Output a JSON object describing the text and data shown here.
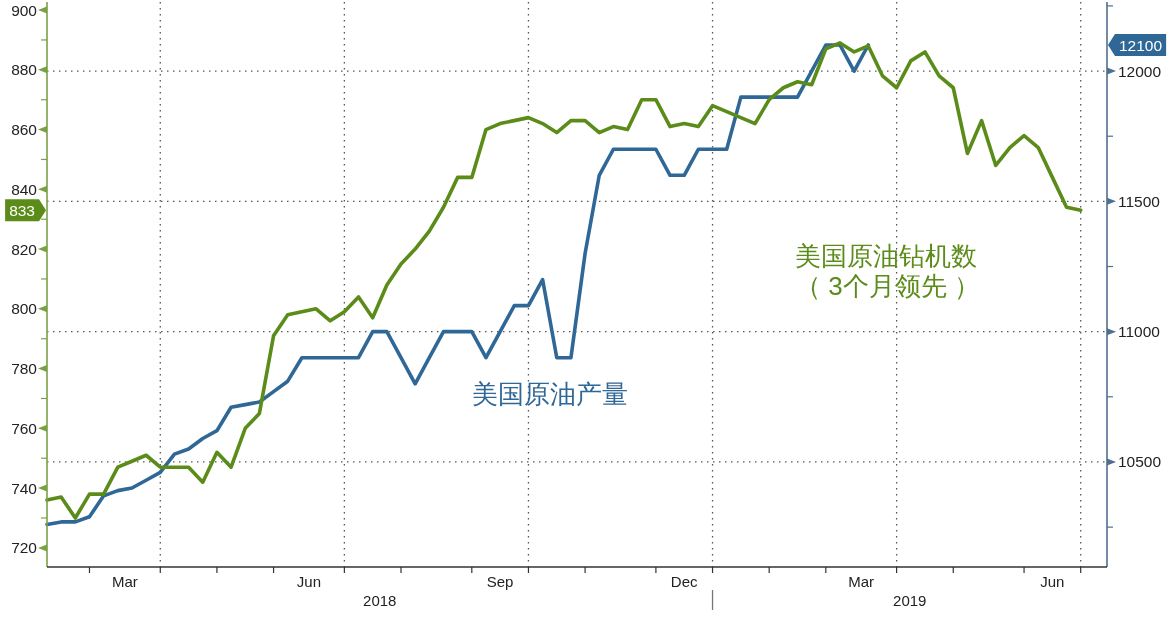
{
  "chart_data": {
    "type": "line",
    "xlim": [
      "2018-02-09",
      "2019-07-18"
    ],
    "xticks": [
      {
        "value": "2018-03-02",
        "label": null
      },
      {
        "value": "2018-03-19T12:00",
        "label": "Mar"
      },
      {
        "value": "2018-04-06",
        "label": null
      },
      {
        "value": "2018-05-04",
        "label": null
      },
      {
        "value": "2018-06-01",
        "label": null
      },
      {
        "value": "2018-06-18T12:00",
        "label": "Jun"
      },
      {
        "value": "2018-07-06",
        "label": null
      },
      {
        "value": "2018-08-03",
        "label": null
      },
      {
        "value": "2018-09-07",
        "label": null
      },
      {
        "value": "2018-09-21",
        "label": "Sep"
      },
      {
        "value": "2018-10-05",
        "label": null
      },
      {
        "value": "2018-11-02",
        "label": null
      },
      {
        "value": "2018-12-07",
        "label": null
      },
      {
        "value": "2018-12-21",
        "label": "Dec"
      },
      {
        "value": "2019-01-04",
        "label": null
      },
      {
        "value": "2019-02-01",
        "label": null
      },
      {
        "value": "2019-03-01",
        "label": null
      },
      {
        "value": "2019-03-18T12:00",
        "label": "Mar"
      },
      {
        "value": "2019-04-05",
        "label": null
      },
      {
        "value": "2019-05-03",
        "label": null
      },
      {
        "value": "2019-06-07",
        "label": null
      },
      {
        "value": "2019-06-21",
        "label": "Jun"
      },
      {
        "value": "2019-07-05",
        "label": null
      }
    ],
    "ylim": [
      713.6,
      902.7
    ],
    "yticks": [
      720,
      {
        "value": 730,
        "label": null
      },
      740,
      {
        "value": 750,
        "label": null
      },
      760,
      {
        "value": 770,
        "label": null
      },
      780,
      {
        "value": 790,
        "label": null
      },
      800,
      {
        "value": 810,
        "label": null
      },
      820,
      {
        "value": 830,
        "label": null
      },
      833,
      840,
      {
        "value": 850,
        "label": null
      },
      860,
      {
        "value": 870,
        "label": null
      },
      880,
      {
        "value": 890,
        "label": null
      },
      900
    ],
    "y2lim": [
      10097,
      12265
    ],
    "y2ticks": [
      {
        "value": 10250,
        "label": null
      },
      10500,
      {
        "value": 10750,
        "label": null
      },
      11000,
      {
        "value": 11250,
        "label": null
      },
      11500,
      {
        "value": 11750,
        "label": null
      },
      12000,
      12100,
      {
        "value": 12250,
        "label": null
      }
    ],
    "grid": true,
    "annotations": [
      "2018",
      "2019"
    ],
    "series": [
      {
        "name": "美国原油产量",
        "color": "#2f6796",
        "axis": "y2",
        "x": [
          "2018-02-09",
          "2018-02-16",
          "2018-02-23",
          "2018-03-02",
          "2018-03-09",
          "2018-03-16",
          "2018-03-23",
          "2018-03-30",
          "2018-04-06",
          "2018-04-13",
          "2018-04-20",
          "2018-04-27",
          "2018-05-04",
          "2018-05-11",
          "2018-05-18",
          "2018-05-25",
          "2018-06-01",
          "2018-06-08",
          "2018-06-15",
          "2018-06-22",
          "2018-06-29",
          "2018-07-06",
          "2018-07-13",
          "2018-07-20",
          "2018-07-27",
          "2018-08-03",
          "2018-08-10",
          "2018-08-17",
          "2018-08-24",
          "2018-08-31",
          "2018-09-07",
          "2018-09-14",
          "2018-09-21",
          "2018-09-28",
          "2018-10-05",
          "2018-10-12",
          "2018-10-19",
          "2018-10-26",
          "2018-11-02",
          "2018-11-09",
          "2018-11-16",
          "2018-11-23",
          "2018-11-30",
          "2018-12-07",
          "2018-12-14",
          "2018-12-21",
          "2018-12-28",
          "2019-01-04",
          "2019-01-11",
          "2019-01-18",
          "2019-01-25",
          "2019-02-01",
          "2019-02-08",
          "2019-02-15",
          "2019-02-22",
          "2019-03-01",
          "2019-03-08",
          "2019-03-15",
          "2019-03-22"
        ],
        "values": [
          10260,
          10270,
          10270,
          10290,
          10370,
          10390,
          10400,
          10430,
          10460,
          10530,
          10550,
          10590,
          10620,
          10710,
          10720,
          10730,
          10770,
          10810,
          10900,
          10900,
          10900,
          10900,
          10900,
          11000,
          11000,
          10900,
          10800,
          10900,
          11000,
          11000,
          11000,
          10900,
          11000,
          11100,
          11100,
          11200,
          10900,
          10900,
          11300,
          11600,
          11700,
          11700,
          11700,
          11700,
          11600,
          11600,
          11700,
          11700,
          11700,
          11900,
          11900,
          11900,
          11900,
          11900,
          12000,
          12100,
          12100,
          12000,
          12100
        ]
      },
      {
        "name": "美国原油钻机数（ 3个月领先 ）",
        "color": "#5b8c1a",
        "x": [
          "2018-02-09",
          "2018-02-16",
          "2018-02-23",
          "2018-03-02",
          "2018-03-09",
          "2018-03-16",
          "2018-03-23",
          "2018-03-30",
          "2018-04-06",
          "2018-04-13",
          "2018-04-20",
          "2018-04-27",
          "2018-05-04",
          "2018-05-11",
          "2018-05-18",
          "2018-05-25",
          "2018-06-01",
          "2018-06-08",
          "2018-06-15",
          "2018-06-22",
          "2018-06-29",
          "2018-07-06",
          "2018-07-13",
          "2018-07-20",
          "2018-07-27",
          "2018-08-03",
          "2018-08-10",
          "2018-08-17",
          "2018-08-24",
          "2018-08-31",
          "2018-09-07",
          "2018-09-14",
          "2018-09-21",
          "2018-09-28",
          "2018-10-05",
          "2018-10-12",
          "2018-10-19",
          "2018-10-26",
          "2018-11-02",
          "2018-11-09",
          "2018-11-16",
          "2018-11-23",
          "2018-11-30",
          "2018-12-07",
          "2018-12-14",
          "2018-12-21",
          "2018-12-28",
          "2019-01-04",
          "2019-01-11",
          "2019-01-18",
          "2019-01-25",
          "2019-02-01",
          "2019-02-08",
          "2019-02-15",
          "2019-02-22",
          "2019-03-01",
          "2019-03-08",
          "2019-03-15",
          "2019-03-22",
          "2019-03-29",
          "2019-04-05",
          "2019-04-12",
          "2019-04-19",
          "2019-04-26",
          "2019-05-03",
          "2019-05-10",
          "2019-05-17",
          "2019-05-24",
          "2019-05-31",
          "2019-06-07",
          "2019-06-14",
          "2019-06-21",
          "2019-06-28",
          "2019-07-05"
        ],
        "values": [
          736,
          737,
          730,
          738,
          738,
          747,
          749,
          751,
          747,
          747,
          747,
          742,
          752,
          747,
          760,
          765,
          791,
          798,
          799,
          800,
          796,
          799,
          804,
          797,
          808,
          815,
          820,
          826,
          834,
          844,
          844,
          860,
          862,
          863,
          864,
          862,
          859,
          863,
          863,
          859,
          861,
          860,
          870,
          870,
          861,
          862,
          861,
          868,
          866,
          864,
          862,
          870,
          874,
          876,
          875,
          887,
          889,
          886,
          888,
          878,
          874,
          883,
          886,
          878,
          874,
          852,
          863,
          848,
          854,
          858,
          854,
          844,
          834,
          833
        ]
      }
    ]
  }
}
